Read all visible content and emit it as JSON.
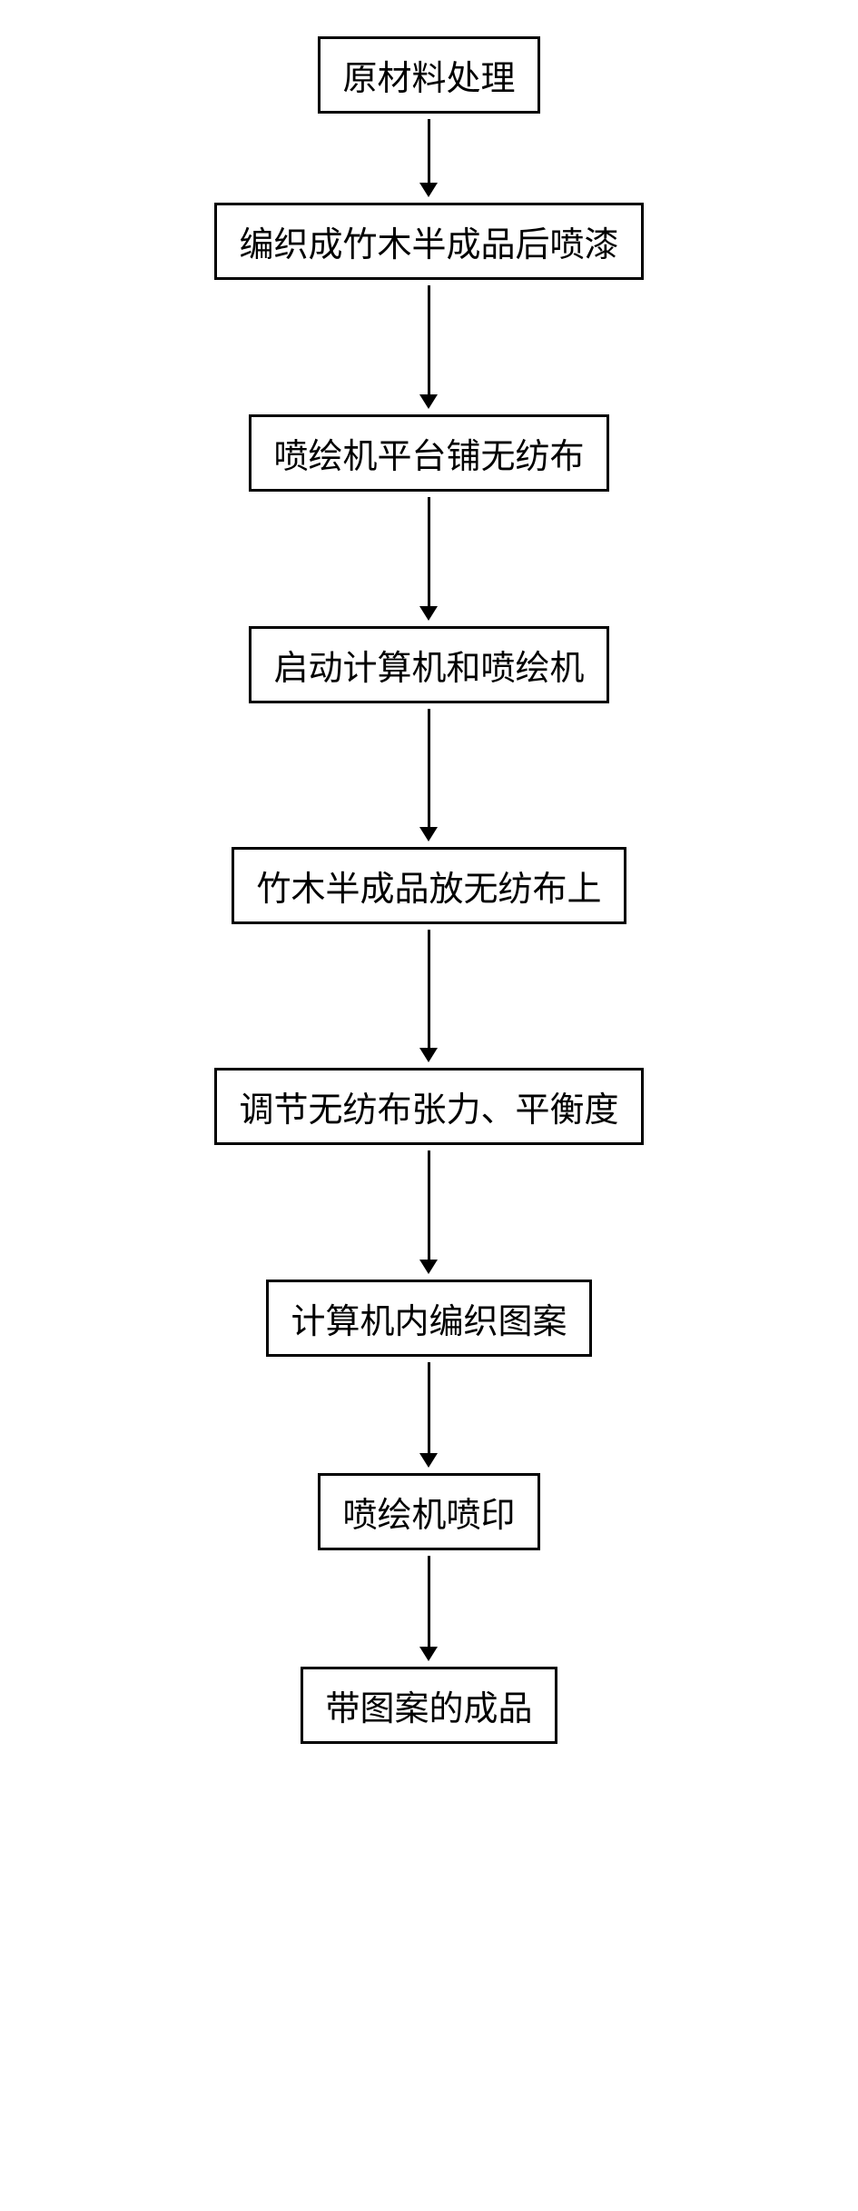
{
  "flowchart": {
    "type": "flowchart",
    "direction": "vertical",
    "background_color": "#ffffff",
    "box_border_color": "#000000",
    "box_border_width": 3,
    "box_padding_v": 12,
    "box_padding_h": 24,
    "arrow_color": "#000000",
    "arrow_line_width": 3,
    "arrow_head_width": 20,
    "arrow_head_height": 16,
    "font_family": "SimSun",
    "font_size": 38,
    "font_color": "#000000",
    "nodes": [
      {
        "id": "n0",
        "label": "原材料处理",
        "arrow_length": 70
      },
      {
        "id": "n1",
        "label": "编织成竹木半成品后喷漆",
        "arrow_length": 120
      },
      {
        "id": "n2",
        "label": "喷绘机平台铺无纺布",
        "arrow_length": 120
      },
      {
        "id": "n3",
        "label": "启动计算机和喷绘机",
        "arrow_length": 130
      },
      {
        "id": "n4",
        "label": "竹木半成品放无纺布上",
        "arrow_length": 130
      },
      {
        "id": "n5",
        "label": "调节无纺布张力、平衡度",
        "arrow_length": 120
      },
      {
        "id": "n6",
        "label": "计算机内编织图案",
        "arrow_length": 100
      },
      {
        "id": "n7",
        "label": "喷绘机喷印",
        "arrow_length": 100
      },
      {
        "id": "n8",
        "label": "带图案的成品",
        "arrow_length": 0
      }
    ]
  }
}
